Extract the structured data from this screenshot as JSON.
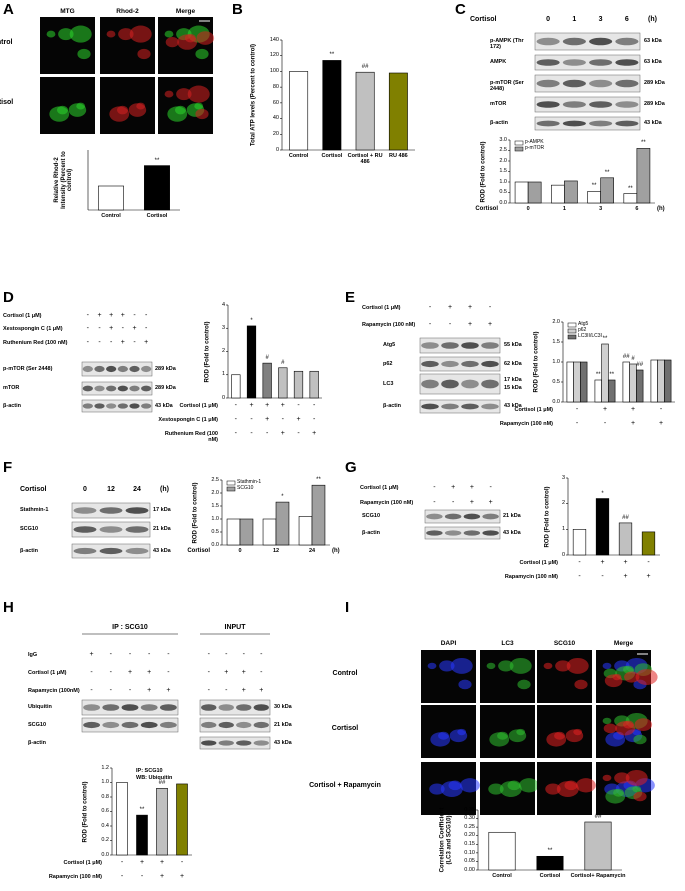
{
  "panels": {
    "A": {
      "letter": "A",
      "columns": [
        "MTG",
        "Rhod-2",
        "Merge"
      ],
      "rows": [
        "Control",
        "Cortisol"
      ]
    },
    "B": {
      "letter": "B"
    },
    "C": {
      "letter": "C",
      "treatment": "Cortisol",
      "lanes": [
        "0",
        "1",
        "3",
        "6"
      ],
      "unit": "(h)",
      "blots": [
        {
          "label": "p-AMPK (Thr 172)",
          "sizes": [
            "63 kDa"
          ]
        },
        {
          "label": "AMPK",
          "sizes": [
            "63 kDa"
          ]
        },
        {
          "label": "p-mTOR (Ser 2448)",
          "sizes": [
            "289 kDa"
          ]
        },
        {
          "label": "mTOR",
          "sizes": [
            "289 kDa"
          ]
        },
        {
          "label": "β-actin",
          "sizes": [
            "43 kDa"
          ]
        }
      ]
    },
    "D": {
      "letter": "D",
      "conditions": [
        {
          "label": "Cortisol (1 μM)",
          "signs": [
            "-",
            "+",
            "+",
            "+",
            "-",
            "-"
          ]
        },
        {
          "label": "Xestospongin C (1 μM)",
          "signs": [
            "-",
            "-",
            "+",
            "-",
            "+",
            "-"
          ]
        },
        {
          "label": "Ruthenium Red (100 nM)",
          "signs": [
            "-",
            "-",
            "-",
            "+",
            "-",
            "+"
          ]
        }
      ],
      "blots": [
        {
          "label": "p-mTOR (Ser 2448)",
          "sizes": [
            "289 kDa"
          ]
        },
        {
          "label": "mTOR",
          "sizes": [
            "289 kDa"
          ]
        },
        {
          "label": "β-actin",
          "sizes": [
            "43 kDa"
          ]
        }
      ]
    },
    "E": {
      "letter": "E",
      "conditions": [
        {
          "label": "Cortisol (1 μM)",
          "signs": [
            "-",
            "+",
            "+",
            "-"
          ]
        },
        {
          "label": "Rapamycin (100 nM)",
          "signs": [
            "-",
            "-",
            "+",
            "+"
          ]
        }
      ],
      "blots": [
        {
          "label": "Atg5",
          "sizes": [
            "55 kDa"
          ]
        },
        {
          "label": "p62",
          "sizes": [
            "62 kDa"
          ]
        },
        {
          "label": "LC3",
          "sizes": [
            "17 kDa",
            "15 kDa"
          ]
        },
        {
          "label": "β-actin",
          "sizes": [
            "43 kDa"
          ]
        }
      ]
    },
    "F": {
      "letter": "F",
      "treatment": "Cortisol",
      "lanes": [
        "0",
        "12",
        "24"
      ],
      "unit": "(h)",
      "blots": [
        {
          "label": "Stathmin-1",
          "sizes": [
            "17 kDa"
          ]
        },
        {
          "label": "SCG10",
          "sizes": [
            "21 kDa"
          ]
        },
        {
          "label": "β-actin",
          "sizes": [
            "43 kDa"
          ]
        }
      ]
    },
    "G": {
      "letter": "G",
      "conditions": [
        {
          "label": "Cortisol (1 μM)",
          "signs": [
            "-",
            "+",
            "+",
            "-"
          ]
        },
        {
          "label": "Rapamycin (100 nM)",
          "signs": [
            "-",
            "-",
            "+",
            "+"
          ]
        }
      ],
      "blots": [
        {
          "label": "SCG10",
          "sizes": [
            "21 kDa"
          ]
        },
        {
          "label": "β-actin",
          "sizes": [
            "43 kDa"
          ]
        }
      ]
    },
    "H": {
      "letter": "H",
      "groups": [
        "IP : SCG10",
        "INPUT"
      ],
      "conditions": [
        {
          "label": "IgG",
          "signs": [
            "+",
            "-",
            "-",
            "-",
            "-",
            "-",
            "-",
            "-",
            "-"
          ]
        },
        {
          "label": "Cortisol (1 μM)",
          "signs": [
            "-",
            "-",
            "+",
            "+",
            "-",
            "-",
            "+",
            "+",
            "-"
          ]
        },
        {
          "label": "Rapamycin (100nM)",
          "signs": [
            "-",
            "-",
            "-",
            "+",
            "+",
            "-",
            "-",
            "+",
            "+"
          ]
        }
      ],
      "blots": [
        {
          "label": "Ubiquitin",
          "sizes": [
            "30 kDa"
          ]
        },
        {
          "label": "SCG10",
          "sizes": [
            "21 kDa"
          ]
        },
        {
          "label": "β-actin",
          "sizes": [
            "43 kDa"
          ]
        }
      ]
    },
    "I": {
      "letter": "I",
      "columns": [
        "DAPI",
        "LC3",
        "SCG10",
        "Merge"
      ],
      "rows": [
        "Control",
        "Cortisol",
        "Cortisol + Rapamycin"
      ]
    }
  },
  "chart_data": [
    {
      "type": "bar",
      "ylabel": "Relative Rhod-2 Intensity (Percent to control)",
      "categories": [
        "Control",
        "Cortisol"
      ],
      "values": [
        100,
        185
      ],
      "colors": [
        "#ffffff",
        "#000000"
      ],
      "value_annotations": [
        null,
        "**"
      ],
      "ylim": [
        0,
        250
      ]
    },
    {
      "type": "bar",
      "ylabel": "Total ATP levels (Percent to control)",
      "categories": [
        "Control",
        "Cortisol",
        "Cortisol + RU 486",
        "RU 486"
      ],
      "values": [
        100,
        114,
        99,
        98
      ],
      "colors": [
        "#ffffff",
        "#000000",
        "#c0c0c0",
        "#808000"
      ],
      "value_annotations": [
        null,
        "**",
        "##",
        null
      ],
      "ylim": [
        0,
        140
      ],
      "yticks": [
        0,
        20,
        40,
        60,
        80,
        100,
        120,
        140
      ]
    },
    {
      "type": "bar",
      "ylabel": "ROD (Fold to control)",
      "xlabel": "Cortisol",
      "xunit": "(h)",
      "categories": [
        "0",
        "1",
        "3",
        "6"
      ],
      "series": [
        {
          "name": "p-AMPK",
          "color": "#ffffff",
          "values": [
            1.0,
            0.85,
            0.55,
            0.45
          ],
          "annotations": [
            null,
            null,
            "**",
            "**"
          ]
        },
        {
          "name": "p-mTOR",
          "color": "#a0a0a0",
          "values": [
            1.0,
            1.05,
            1.2,
            2.6
          ],
          "annotations": [
            null,
            null,
            "**",
            "**"
          ]
        }
      ],
      "ylim": [
        0,
        3
      ],
      "yticks": [
        {
          "value": 0,
          "label": "0.0"
        },
        0.5,
        {
          "value": 1,
          "label": "1.0"
        },
        1.5,
        {
          "value": 2,
          "label": "2.0"
        },
        2.5,
        {
          "value": 3,
          "label": "3.0"
        }
      ]
    },
    {
      "type": "bar",
      "ylabel": "ROD (Fold to control)",
      "categories": [
        null,
        null,
        null,
        null,
        null,
        null
      ],
      "values": [
        1.0,
        3.1,
        1.5,
        1.3,
        1.15,
        1.15
      ],
      "colors": [
        "#ffffff",
        "#000000",
        "#808080",
        "#c0c0c0",
        "#c0c0c0",
        "#c0c0c0"
      ],
      "value_annotations": [
        null,
        "*",
        "#",
        "#",
        null,
        null
      ],
      "ylim": [
        0,
        4
      ],
      "yticks": [
        0,
        1,
        2,
        3,
        4
      ],
      "conditions": [
        {
          "label": "Cortisol (1 μM)",
          "signs": [
            "-",
            "+",
            "+",
            "+",
            "-",
            "-"
          ]
        },
        {
          "label": "Xestospongin C (1 μM)",
          "signs": [
            "-",
            "-",
            "+",
            "-",
            "+",
            "-"
          ]
        },
        {
          "label": "Ruthenium Red (100 nM)",
          "signs": [
            "-",
            "-",
            "-",
            "+",
            "-",
            "+"
          ]
        }
      ]
    },
    {
      "type": "bar",
      "ylabel": "ROD (Fold to control)",
      "categories": [
        null,
        null,
        null,
        null
      ],
      "series": [
        {
          "name": "Atg5",
          "color": "#ffffff",
          "values": [
            1.0,
            0.55,
            1.0,
            1.05
          ],
          "annotations": [
            null,
            "**",
            "##",
            null
          ]
        },
        {
          "name": "p62",
          "color": "#d0d0d0",
          "values": [
            1.0,
            1.45,
            0.95,
            1.05
          ],
          "annotations": [
            null,
            "**",
            "#",
            null
          ]
        },
        {
          "name": "LC3II/LC3I",
          "color": "#707070",
          "values": [
            1.0,
            0.55,
            0.8,
            1.05
          ],
          "annotations": [
            null,
            "**",
            "##",
            null
          ]
        }
      ],
      "ylim": [
        0,
        2
      ],
      "yticks": [
        {
          "value": 0,
          "label": "0.0"
        },
        0.5,
        {
          "value": 1,
          "label": "1.0"
        },
        1.5,
        {
          "value": 2,
          "label": "2.0"
        }
      ],
      "conditions": [
        {
          "label": "Cortisol (1 μM)",
          "signs": [
            "-",
            "+",
            "+",
            "-"
          ]
        },
        {
          "label": "Rapamycin (100 nM)",
          "signs": [
            "-",
            "-",
            "+",
            "+"
          ]
        }
      ]
    },
    {
      "type": "bar",
      "ylabel": "ROD (Fold to control)",
      "xlabel": "Cortisol",
      "xunit": "(h)",
      "categories": [
        "0",
        "12",
        "24"
      ],
      "series": [
        {
          "name": "Stathmin-1",
          "color": "#ffffff",
          "values": [
            1.0,
            1.0,
            1.1
          ],
          "annotations": [
            null,
            null,
            null
          ]
        },
        {
          "name": "SCG10",
          "color": "#a0a0a0",
          "values": [
            1.0,
            1.65,
            2.3
          ],
          "annotations": [
            null,
            "*",
            "**"
          ]
        }
      ],
      "ylim": [
        0,
        2.5
      ],
      "yticks": [
        {
          "value": 0,
          "label": "0.0"
        },
        0.5,
        {
          "value": 1,
          "label": "1.0"
        },
        1.5,
        {
          "value": 2,
          "label": "2.0"
        },
        2.5
      ]
    },
    {
      "type": "bar",
      "ylabel": "ROD (Fold to control)",
      "categories": [
        null,
        null,
        null,
        null
      ],
      "values": [
        1.0,
        2.2,
        1.25,
        0.9
      ],
      "colors": [
        "#ffffff",
        "#000000",
        "#c0c0c0",
        "#808000"
      ],
      "value_annotations": [
        null,
        "*",
        "##",
        null
      ],
      "ylim": [
        0,
        3
      ],
      "yticks": [
        0,
        1,
        2,
        3
      ],
      "conditions": [
        {
          "label": "Cortisol (1 μM)",
          "signs": [
            "-",
            "+",
            "+",
            "-"
          ]
        },
        {
          "label": "Rapamycin (100 nM)",
          "signs": [
            "-",
            "-",
            "+",
            "+"
          ]
        }
      ]
    },
    {
      "type": "bar",
      "ylabel": "ROD (Fold to control)",
      "notes": [
        "IP: SCG10",
        "WB: Ubiquitin"
      ],
      "categories": [
        null,
        null,
        null,
        null
      ],
      "values": [
        1.0,
        0.55,
        0.92,
        0.98
      ],
      "colors": [
        "#ffffff",
        "#000000",
        "#c0c0c0",
        "#808000"
      ],
      "value_annotations": [
        null,
        "**",
        "##",
        null
      ],
      "ylim": [
        0,
        1.2
      ],
      "yticks": [
        {
          "value": 0,
          "label": "0.0"
        },
        0.2,
        0.4,
        0.6,
        0.8,
        {
          "value": 1,
          "label": "1.0"
        },
        1.2
      ],
      "conditions": [
        {
          "label": "Cortisol (1 μM)",
          "signs": [
            "-",
            "+",
            "+",
            "-"
          ]
        },
        {
          "label": "Rapamycin (100 nM)",
          "signs": [
            "-",
            "-",
            "+",
            "+"
          ]
        }
      ]
    },
    {
      "type": "bar",
      "ylabel": "Correlation Coefficient (LC3 and SCG10)",
      "categories": [
        "Control",
        "Cortisol",
        "Cortisol+ Rapamycin"
      ],
      "values": [
        0.22,
        0.08,
        0.28
      ],
      "colors": [
        "#ffffff",
        "#000000",
        "#c0c0c0"
      ],
      "value_annotations": [
        null,
        "**",
        "##"
      ],
      "ylim": [
        0,
        0.35
      ],
      "yticks": [
        {
          "value": 0,
          "label": "0.00"
        },
        0.05,
        {
          "value": 0.1,
          "label": "0.10"
        },
        0.15,
        {
          "value": 0.2,
          "label": "0.20"
        },
        0.25,
        {
          "value": 0.3,
          "label": "0.30"
        },
        0.35
      ]
    }
  ]
}
